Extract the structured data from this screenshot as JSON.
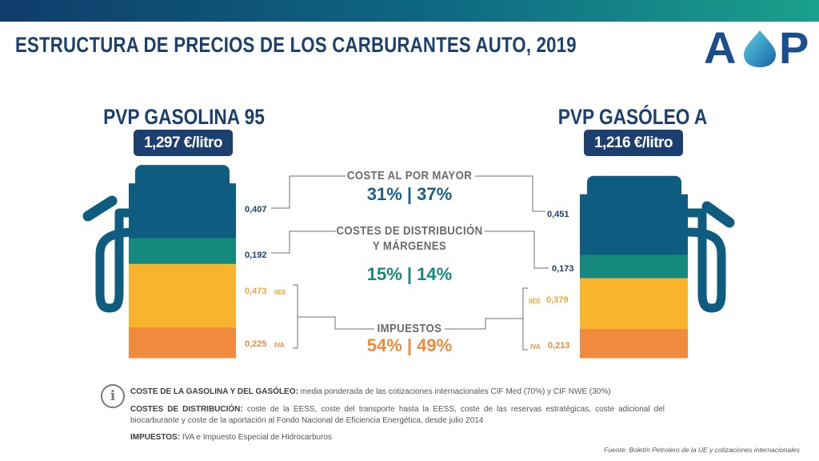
{
  "title": "ESTRUCTURA DE PRECIOS DE LOS CARBURANTES AUTO, 2019",
  "logo_text": "AOP",
  "colors": {
    "header_dark": "#0f3c6b",
    "navy": "#1b3f6e",
    "blue": "#0e5c7f",
    "teal": "#16897f",
    "yellow": "#f9b42e",
    "orange": "#f08a3d",
    "gray": "#6b6b6b"
  },
  "chart_data": {
    "type": "bar",
    "stacked": true,
    "unit": "€/litro",
    "categories": [
      "PVP GASOLINA 95",
      "PVP GASÓLEO A"
    ],
    "totals_display": [
      "1,297 €/litro",
      "1,216 €/litro"
    ],
    "series": [
      {
        "name": "COSTE AL POR MAYOR",
        "values": [
          0.407,
          0.451
        ],
        "value_labels": [
          "0,407",
          "0,451"
        ],
        "color": "#0e5c7f"
      },
      {
        "name": "COSTES DE DISTRIBUCIÓN Y MÁRGENES",
        "values": [
          0.192,
          0.173
        ],
        "value_labels": [
          "0,192",
          "0,173"
        ],
        "color": "#16897f"
      },
      {
        "name": "IIEE",
        "values": [
          0.473,
          0.379
        ],
        "value_labels": [
          "0,473",
          "0,379"
        ],
        "color": "#f9b42e"
      },
      {
        "name": "IVA",
        "values": [
          0.225,
          0.213
        ],
        "value_labels": [
          "0,225",
          "0,213"
        ],
        "color": "#f08a3d"
      }
    ],
    "groups": [
      {
        "label_lines": [
          "COSTE AL POR MAYOR"
        ],
        "pct": "31% | 37%",
        "color": "#1b5f8a"
      },
      {
        "label_lines": [
          "COSTES DE DISTRIBUCIÓN",
          "Y MÁRGENES"
        ],
        "pct": "15% | 14%",
        "color": "#16897f"
      },
      {
        "label_lines": [
          "IMPUESTOS"
        ],
        "pct": "54% | 49%",
        "color": "#f08a3d"
      }
    ]
  },
  "notes": [
    {
      "label": "COSTE DE LA GASOLINA Y DEL GASÓLEO:",
      "text": " media ponderada de las cotizaciones internacionales CIF Med (70%) y CIF NWE (30%)"
    },
    {
      "label": "COSTES DE DISTRIBUCIÓN:",
      "text": " coste de la EESS, coste del transporte hasta la EESS, coste de las reservas estratégicas, coste adicional del biocarburante y coste de la aportación al Fondo Nacional de Eficiencia Energética, desde julio 2014"
    },
    {
      "label": "IMPUESTOS:",
      "text": " IVA e Impuesto Especial de Hidrocarburos"
    }
  ],
  "source": "Fuente: Boletín Petrolero de la UE y cotizaciones internacionales"
}
